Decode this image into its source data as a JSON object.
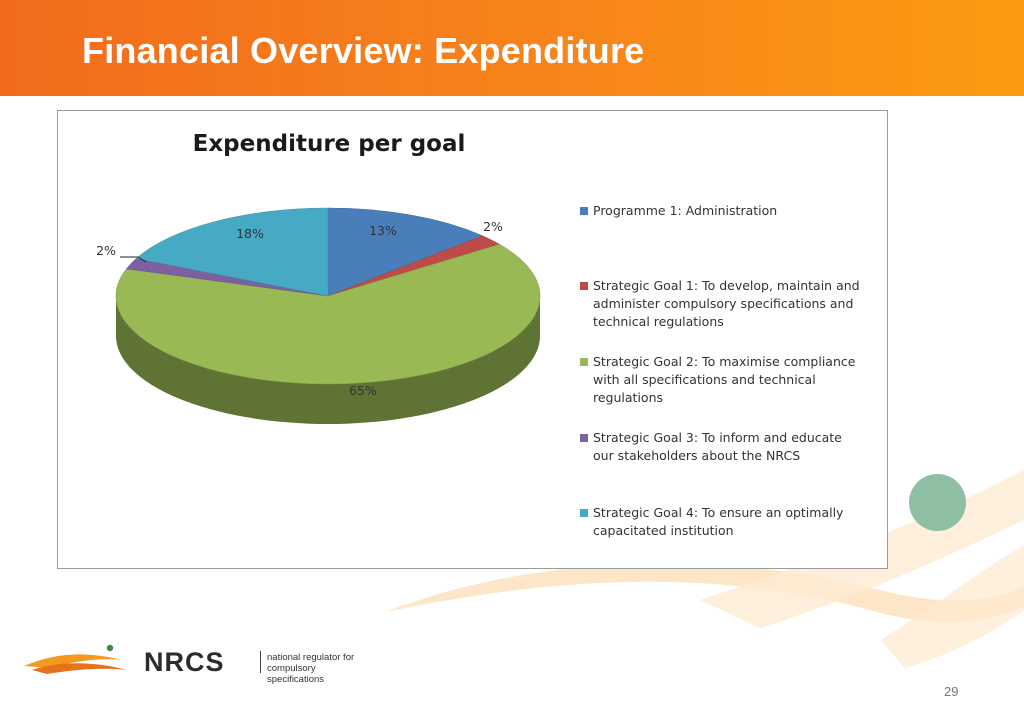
{
  "slide": {
    "title": "Financial Overview: Expenditure",
    "page_number": "29"
  },
  "logo": {
    "wordmark": "NRCS",
    "tagline_line1": "national regulator for",
    "tagline_line2": "compulsory specifications"
  },
  "colors": {
    "header_start": "#f26b1d",
    "header_end": "#fb9b12",
    "accent_dot": "#8fbfa2"
  },
  "chart_data": {
    "type": "pie",
    "title": "Expenditure per goal",
    "three_d": true,
    "legend_position": "right",
    "slices": [
      {
        "label": "Programme 1: Administration",
        "value": 13,
        "display": "13%",
        "color": "#4a7ebb"
      },
      {
        "label": "Strategic Goal 1: To develop, maintain and administer compulsory specifications and technical regulations",
        "value": 2,
        "display": "2%",
        "color": "#be4b48"
      },
      {
        "label": "Strategic Goal 2: To maximise compliance with all specifications and technical regulations",
        "value": 65,
        "display": "65%",
        "color": "#98b954"
      },
      {
        "label": "Strategic Goal 3: To inform and educate our stakeholders about the NRCS",
        "value": 2,
        "display": "2%",
        "color": "#7d60a0"
      },
      {
        "label": "Strategic Goal 4:  To ensure an optimally capacitated institution",
        "value": 18,
        "display": "18%",
        "color": "#46aac5"
      }
    ]
  }
}
